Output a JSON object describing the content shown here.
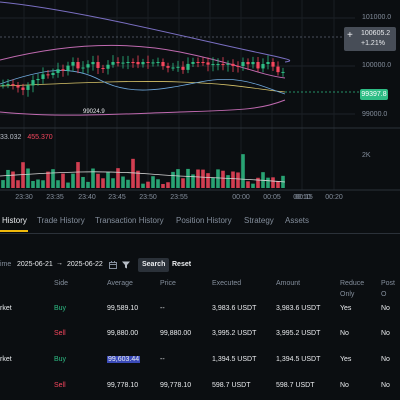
{
  "price_axis": {
    "labels": [
      "101000.0",
      "100000.0",
      "99000.0"
    ],
    "last_price": "100605.2",
    "change_pct": "+1.21%",
    "current_price": "99397.8",
    "low_marker": "99024.9"
  },
  "volume": {
    "value_a": "33.032",
    "value_b": "455.370",
    "axis_label": "2K"
  },
  "time_axis": [
    "23:30",
    "23:35",
    "23:40",
    "23:45",
    "23:50",
    "23:55",
    "00:00",
    "00:05",
    "00:10",
    "00:15",
    "00:20"
  ],
  "colors": {
    "up": "#2ebd85",
    "down": "#f6465d",
    "accent": "#f0b90b",
    "background": "#0b0e11"
  },
  "tabs": [
    {
      "label": "History",
      "active": true
    },
    {
      "label": "Trade History"
    },
    {
      "label": "Transaction History"
    },
    {
      "label": "Position History"
    },
    {
      "label": "Strategy"
    },
    {
      "label": "Assets"
    }
  ],
  "filter": {
    "time_label": "ime",
    "date_from": "2025-06-21",
    "arrow": "→",
    "date_to": "2025-06-22",
    "calendar_icon": "calendar-icon",
    "filter_icon": "filter-icon",
    "search_label": "Search",
    "reset_label": "Reset"
  },
  "table": {
    "headers": [
      "Side",
      "Average",
      "Price",
      "Executed",
      "Amount",
      "Reduce Only",
      "Post O"
    ],
    "rows": [
      {
        "type": "rket",
        "side": "Buy",
        "average": "99,589.10",
        "price": "--",
        "executed": "3,983.6 USDT",
        "amount": "3,983.6 USDT",
        "reduce": "Yes",
        "post": "No"
      },
      {
        "type": "",
        "side": "Sell",
        "average": "99,880.00",
        "price": "99,880.00",
        "executed": "3,995.2 USDT",
        "amount": "3,995.2 USDT",
        "reduce": "No",
        "post": "No"
      },
      {
        "type": "rket",
        "side": "Buy",
        "average": "99,603.44",
        "price": "--",
        "executed": "1,394.5 USDT",
        "amount": "1,394.5 USDT",
        "reduce": "Yes",
        "post": "No"
      },
      {
        "type": "",
        "side": "Sell",
        "average": "99,778.10",
        "price": "99,778.10",
        "executed": "598.7 USDT",
        "amount": "598.7 USDT",
        "reduce": "No",
        "post": "No"
      }
    ]
  }
}
